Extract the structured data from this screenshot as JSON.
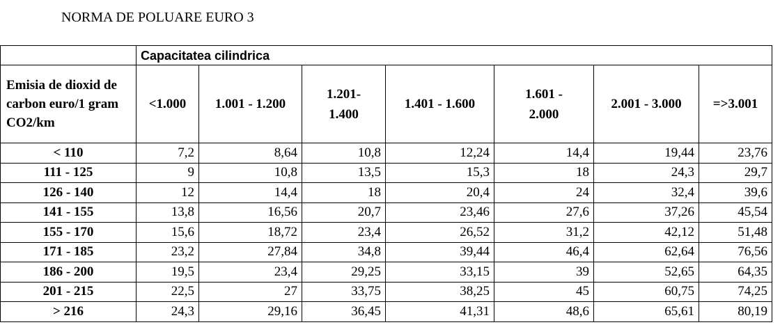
{
  "title": "NORMA DE POLUARE EURO 3",
  "table": {
    "group_header": "Capacitatea cilindrica",
    "row_header": "Emisia de dioxid de carbon euro/1 gram CO2/km",
    "columns": [
      "<1.000",
      "1.001 - 1.200",
      "1.201-\n1.400",
      "1.401 - 1.600",
      "1.601 -\n2.000",
      "2.001 - 3.000",
      "=>3.001"
    ],
    "rows": [
      {
        "label": "< 110",
        "values": [
          "7,2",
          "8,64",
          "10,8",
          "12,24",
          "14,4",
          "19,44",
          "23,76"
        ]
      },
      {
        "label": "111 - 125",
        "values": [
          "9",
          "10,8",
          "13,5",
          "15,3",
          "18",
          "24,3",
          "29,7"
        ]
      },
      {
        "label": "126 - 140",
        "values": [
          "12",
          "14,4",
          "18",
          "20,4",
          "24",
          "32,4",
          "39,6"
        ]
      },
      {
        "label": "141 - 155",
        "values": [
          "13,8",
          "16,56",
          "20,7",
          "23,46",
          "27,6",
          "37,26",
          "45,54"
        ]
      },
      {
        "label": "155 - 170",
        "values": [
          "15,6",
          "18,72",
          "23,4",
          "26,52",
          "31,2",
          "42,12",
          "51,48"
        ]
      },
      {
        "label": "171 - 185",
        "values": [
          "23,2",
          "27,84",
          "34,8",
          "39,44",
          "46,4",
          "62,64",
          "76,56"
        ]
      },
      {
        "label": "186 - 200",
        "values": [
          "19,5",
          "23,4",
          "29,25",
          "33,15",
          "39",
          "52,65",
          "64,35"
        ]
      },
      {
        "label": "201 - 215",
        "values": [
          "22,5",
          "27",
          "33,75",
          "38,25",
          "45",
          "60,75",
          "74,25"
        ]
      },
      {
        "label": "> 216",
        "values": [
          "24,3",
          "29,16",
          "36,45",
          "41,31",
          "48,6",
          "65,61",
          "80,19"
        ]
      }
    ]
  }
}
